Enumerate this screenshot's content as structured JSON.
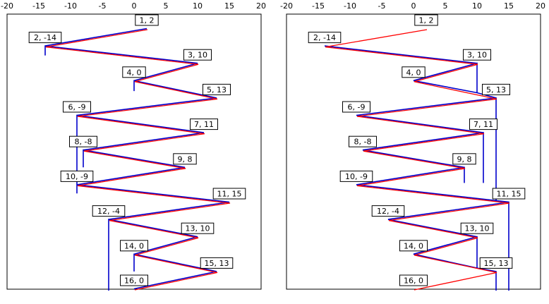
{
  "chart_data": [
    {
      "type": "line",
      "xlim": [
        -20,
        20
      ],
      "x_ticks": [
        -20,
        -15,
        -10,
        -5,
        0,
        5,
        10,
        15,
        20
      ],
      "red_series": [
        [
          2,
          1
        ],
        [
          -14,
          2
        ],
        [
          10,
          3
        ],
        [
          0,
          4
        ],
        [
          13,
          5
        ],
        [
          -9,
          6
        ],
        [
          11,
          7
        ],
        [
          -8,
          8
        ],
        [
          8,
          9
        ],
        [
          -9,
          10
        ],
        [
          15,
          11
        ],
        [
          -4,
          12
        ],
        [
          10,
          13
        ],
        [
          0,
          14
        ],
        [
          13,
          15
        ],
        [
          0,
          16
        ]
      ],
      "point_labels": [
        "1, 2",
        "2, -14",
        "3, 10",
        "4, 0",
        "5, 13",
        "6, -9",
        "7, 11",
        "8, -8",
        "9, 8",
        "10, -9",
        "11, 15",
        "12, -4",
        "13, 10",
        "14, 0",
        "15, 13",
        "16, 0"
      ],
      "blue_path": [
        [
          2,
          1
        ],
        [
          -14,
          2
        ],
        [
          -14,
          2.55
        ],
        [
          -14,
          2
        ],
        [
          10,
          3
        ],
        [
          0,
          4
        ],
        [
          0,
          4.6
        ],
        [
          0,
          4
        ],
        [
          13,
          5
        ],
        [
          -9,
          6
        ],
        [
          -9,
          10.5
        ],
        [
          -9,
          6
        ],
        [
          11,
          7
        ],
        [
          -8,
          8
        ],
        [
          -8,
          9
        ],
        [
          -8,
          8
        ],
        [
          8,
          9
        ],
        [
          -9,
          10
        ],
        [
          -9,
          10.5
        ],
        [
          -9,
          10
        ],
        [
          15,
          11
        ],
        [
          -4,
          12
        ],
        [
          -4,
          16.1
        ],
        [
          -4,
          12
        ],
        [
          10,
          13
        ],
        [
          0,
          14
        ],
        [
          0,
          15
        ],
        [
          0,
          14
        ],
        [
          13,
          15
        ],
        [
          0,
          16
        ]
      ],
      "colors": {
        "red": "#ff0000",
        "blue": "#0000cc"
      }
    },
    {
      "type": "line",
      "xlim": [
        -20,
        20
      ],
      "x_ticks": [
        -20,
        -15,
        -10,
        -5,
        0,
        5,
        10,
        15,
        20
      ],
      "red_series": [
        [
          2,
          1
        ],
        [
          -14,
          2
        ],
        [
          10,
          3
        ],
        [
          0,
          4
        ],
        [
          13,
          5
        ],
        [
          -9,
          6
        ],
        [
          11,
          7
        ],
        [
          -8,
          8
        ],
        [
          8,
          9
        ],
        [
          -9,
          10
        ],
        [
          15,
          11
        ],
        [
          -4,
          12
        ],
        [
          10,
          13
        ],
        [
          0,
          14
        ],
        [
          13,
          15
        ],
        [
          0,
          16
        ]
      ],
      "point_labels": [
        "1, 2",
        "2, -14",
        "3, 10",
        "4, 0",
        "5, 13",
        "6, -9",
        "7, 11",
        "8, -8",
        "9, 8",
        "10, -9",
        "11, 15",
        "12, -4",
        "13, 10",
        "14, 0",
        "15, 13",
        "16, 0"
      ],
      "blue_path": [
        [
          -14,
          2
        ],
        [
          10,
          3
        ],
        [
          10,
          4.7
        ],
        [
          10,
          3
        ],
        [
          0,
          4
        ],
        [
          10,
          4.7
        ],
        [
          13,
          5
        ],
        [
          13,
          11
        ],
        [
          13,
          5
        ],
        [
          -9,
          6
        ],
        [
          11,
          7
        ],
        [
          11,
          9.9
        ],
        [
          11,
          7
        ],
        [
          -8,
          8
        ],
        [
          8,
          9
        ],
        [
          8,
          9.9
        ],
        [
          8,
          9
        ],
        [
          -9,
          10
        ],
        [
          15,
          11
        ],
        [
          15,
          16.1
        ],
        [
          15,
          11
        ],
        [
          -4,
          12
        ],
        [
          10,
          13
        ],
        [
          10,
          14.8
        ],
        [
          10,
          13
        ],
        [
          0,
          14
        ],
        [
          10,
          14.8
        ],
        [
          13,
          15
        ],
        [
          13,
          16.1
        ]
      ],
      "colors": {
        "red": "#ff0000",
        "blue": "#0000cc"
      }
    }
  ]
}
